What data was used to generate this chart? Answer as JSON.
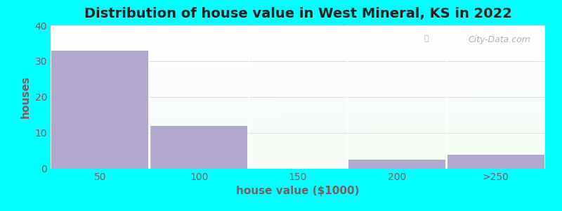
{
  "title": "Distribution of house value in West Mineral, KS in 2022",
  "xlabel": "house value ($1000)",
  "ylabel": "houses",
  "bar_labels": [
    "50",
    "100",
    "150",
    "200",
    ">250"
  ],
  "bar_values": [
    33,
    12,
    0,
    2.5,
    4
  ],
  "bar_color": "#b3a8d0",
  "ylim": [
    0,
    40
  ],
  "yticks": [
    0,
    10,
    20,
    30,
    40
  ],
  "background_color": "#00ffff",
  "grid_color": "#e0dde8",
  "title_fontsize": 14,
  "axis_label_fontsize": 11,
  "tick_fontsize": 10,
  "watermark_text": "City-Data.com",
  "label_color": "#7a6060",
  "title_color": "#222222"
}
